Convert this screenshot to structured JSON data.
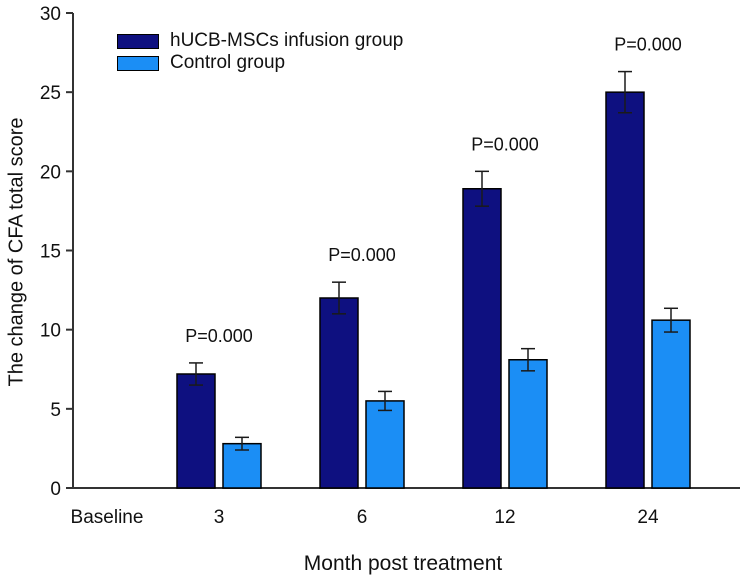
{
  "figure": {
    "background": "#ffffff",
    "axis_color": "#333333",
    "error_bar_color": "#1a1a1a",
    "text_color": "#111111"
  },
  "chart_data": {
    "type": "bar",
    "title": "",
    "xlabel": "Month post treatment",
    "ylabel": "The change of CFA total score",
    "ylim": [
      0,
      30
    ],
    "yticks": [
      0,
      5,
      10,
      15,
      20,
      25,
      30
    ],
    "grid": false,
    "legend_position": "top-left-inside",
    "categories": [
      "Baseline",
      "3",
      "6",
      "12",
      "24"
    ],
    "series": [
      {
        "name": "hUCB-MSCs infusion group",
        "color": "#0e1080",
        "values": [
          null,
          7.2,
          12.0,
          18.9,
          25.0
        ],
        "errors": [
          null,
          0.7,
          1.0,
          1.1,
          1.3
        ]
      },
      {
        "name": "Control group",
        "color": "#1b8ef5",
        "values": [
          null,
          2.8,
          5.5,
          8.1,
          10.6
        ],
        "errors": [
          null,
          0.4,
          0.6,
          0.7,
          0.75
        ]
      }
    ],
    "annotations": [
      {
        "category": "3",
        "text": "P=0.000"
      },
      {
        "category": "6",
        "text": "P=0.000"
      },
      {
        "category": "12",
        "text": "P=0.000"
      },
      {
        "category": "24",
        "text": "P=0.000"
      }
    ]
  }
}
